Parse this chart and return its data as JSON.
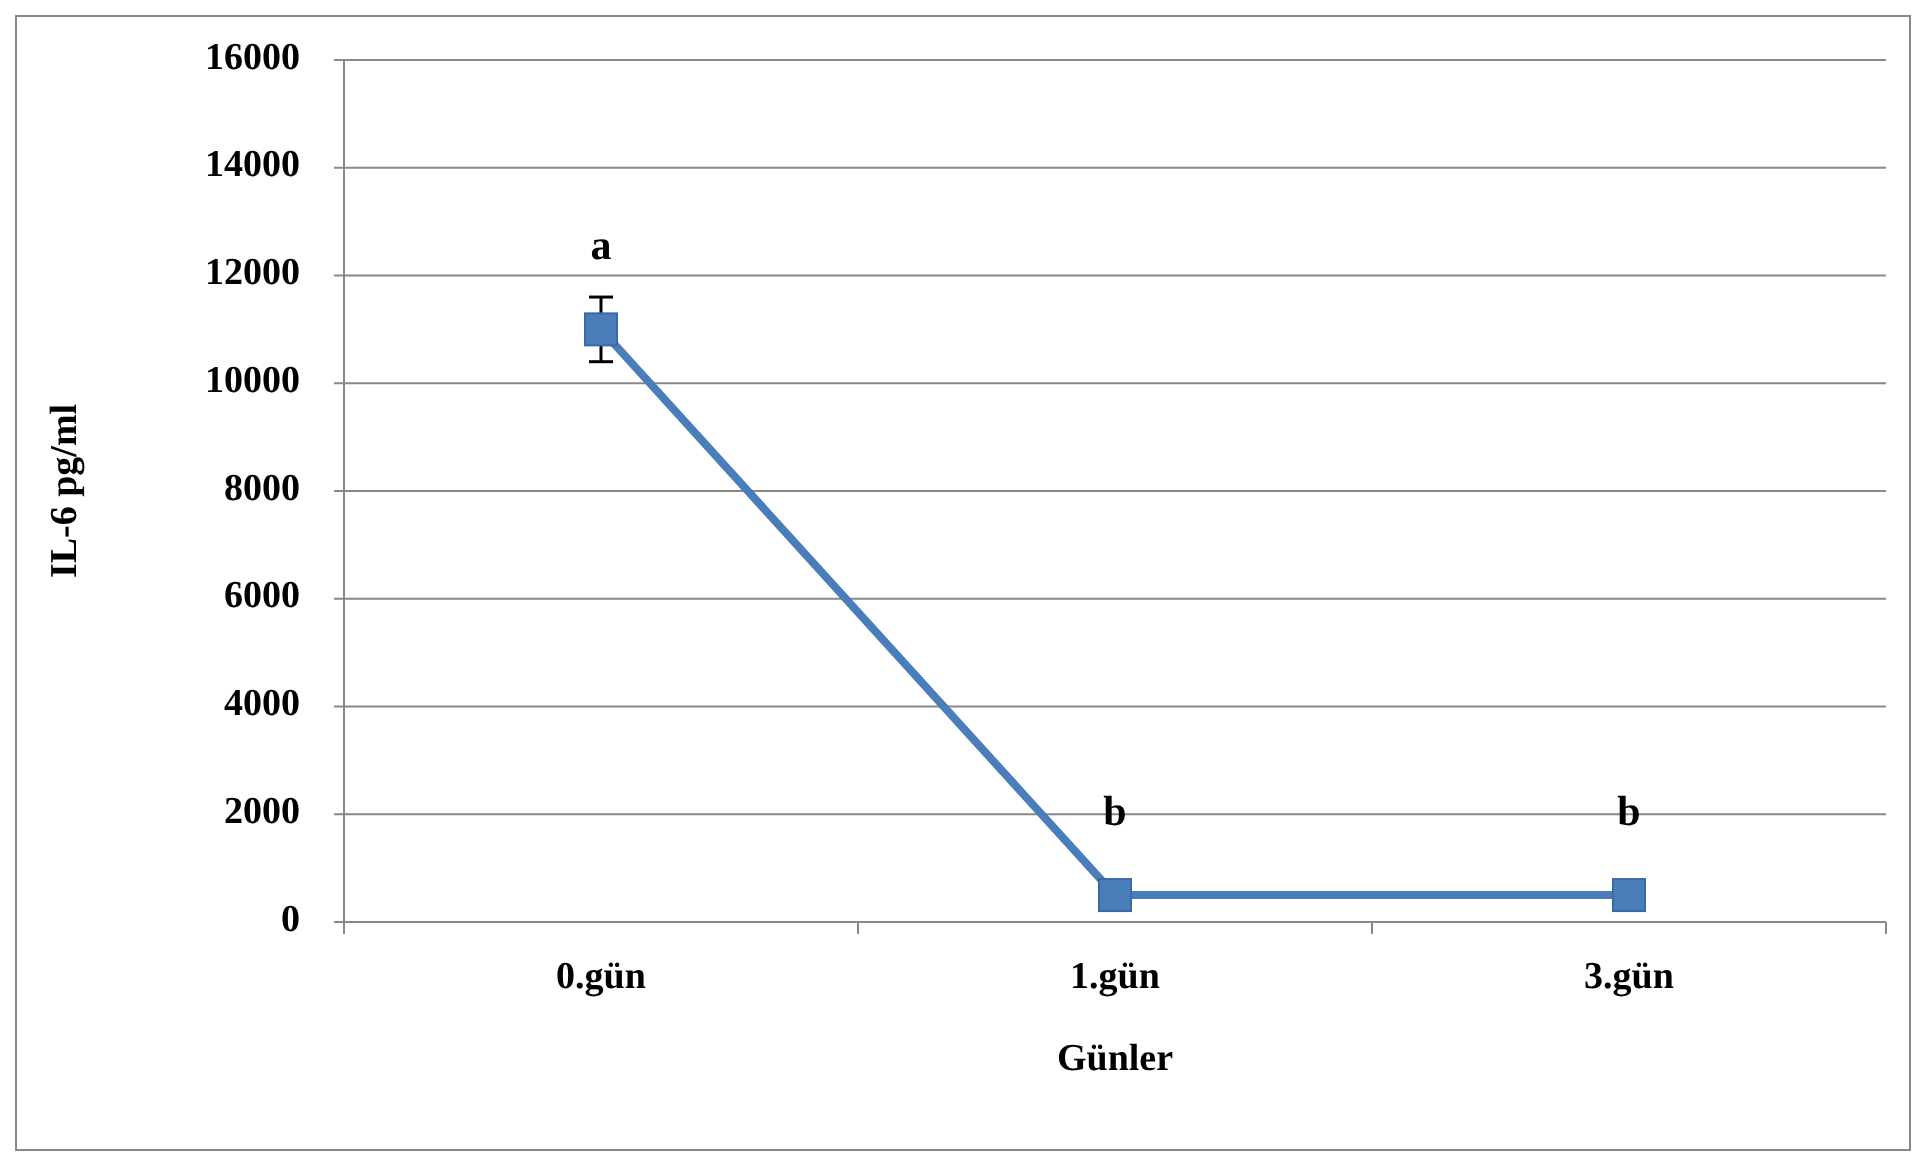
{
  "chart_data": {
    "type": "line",
    "xlabel": "Günler",
    "ylabel": "IL-6 pg/ml",
    "categories": [
      "0.gün",
      "1.gün",
      "3.gün"
    ],
    "series": [
      {
        "color": "#4a7ebb",
        "values": [
          11000,
          500,
          500
        ],
        "errors": [
          600,
          null,
          null
        ]
      }
    ],
    "ylim": [
      0,
      16000
    ],
    "yticks": [
      0,
      2000,
      4000,
      6000,
      8000,
      10000,
      12000,
      14000,
      16000
    ],
    "grid": "y",
    "marker": "square",
    "line_style": "solid",
    "annotations": [
      {
        "text": "a",
        "x": "0.gün",
        "y": 11000
      },
      {
        "text": "b",
        "x": "1.gün",
        "y": 500
      },
      {
        "text": "b",
        "x": "3.gün",
        "y": 500
      }
    ]
  }
}
